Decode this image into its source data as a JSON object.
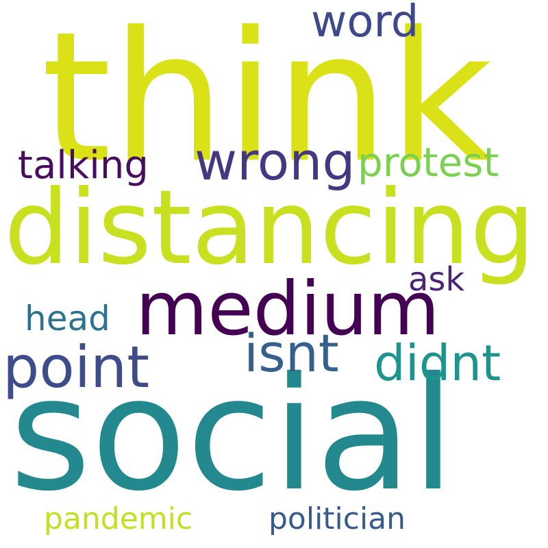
{
  "words": {
    "think": {
      "text": "think",
      "color": "#dbe117"
    },
    "distancing": {
      "text": "distancing",
      "color": "#c8e020"
    },
    "social": {
      "text": "social",
      "color": "#23898e"
    },
    "medium": {
      "text": "medium",
      "color": "#440154"
    },
    "wrong": {
      "text": "wrong",
      "color": "#453781"
    },
    "point": {
      "text": "point",
      "color": "#3e4c8a"
    },
    "isnt": {
      "text": "isnt",
      "color": "#355f8d"
    },
    "didnt": {
      "text": "didnt",
      "color": "#1f948c"
    },
    "protest": {
      "text": "protest",
      "color": "#7ad151"
    },
    "talking": {
      "text": "talking",
      "color": "#470d60"
    },
    "word": {
      "text": "word",
      "color": "#3e4989"
    },
    "ask": {
      "text": "ask",
      "color": "#482576"
    },
    "head": {
      "text": "head",
      "color": "#2c728e"
    },
    "pandemic": {
      "text": "pandemic",
      "color": "#c2df23"
    },
    "politician": {
      "text": "politician",
      "color": "#375a8c"
    }
  }
}
